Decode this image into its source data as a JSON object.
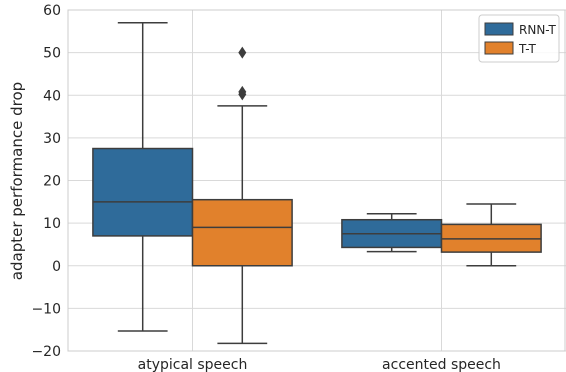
{
  "chart_data": {
    "type": "box",
    "title": "",
    "xlabel": "",
    "ylabel": "adapter performance drop",
    "ylim": [
      -20,
      60
    ],
    "yticks": [
      -20,
      -10,
      0,
      10,
      20,
      30,
      40,
      50,
      60
    ],
    "ytick_labels": [
      "−20",
      "−10",
      "0",
      "10",
      "20",
      "30",
      "40",
      "50",
      "60"
    ],
    "grid": true,
    "legend_position": "top-right",
    "categories": [
      "atypical speech",
      "accented speech"
    ],
    "series": [
      {
        "name": "RNN-T",
        "color": "#2f6b9a",
        "boxes": [
          {
            "whisker_low": -15.3,
            "q1": 7.0,
            "median": 15.0,
            "q3": 27.5,
            "whisker_high": 57.0,
            "outliers": []
          },
          {
            "whisker_low": 3.3,
            "q1": 4.3,
            "median": 7.5,
            "q3": 10.8,
            "whisker_high": 12.2,
            "outliers": []
          }
        ]
      },
      {
        "name": "T-T",
        "color": "#e1812c",
        "boxes": [
          {
            "whisker_low": -18.2,
            "q1": 0.0,
            "median": 9.0,
            "q3": 15.5,
            "whisker_high": 37.5,
            "outliers": [
              40.2,
              40.8,
              50.0
            ]
          },
          {
            "whisker_low": 0.0,
            "q1": 3.2,
            "median": 6.3,
            "q3": 9.7,
            "whisker_high": 14.5,
            "outliers": []
          }
        ]
      }
    ]
  }
}
